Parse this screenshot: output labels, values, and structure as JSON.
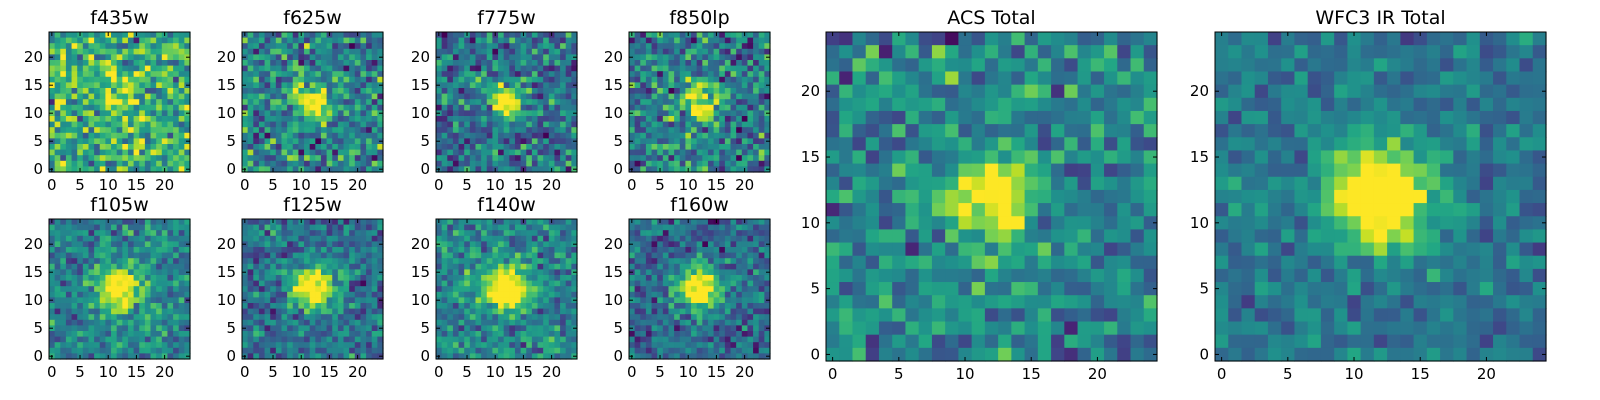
{
  "chart_data": [
    {
      "type": "heatmap",
      "title": "f435w",
      "peak": [
        12,
        12
      ],
      "signal": 0.15,
      "sigma": 3.0,
      "noise": 0.3,
      "base": 0.62,
      "seed": 11,
      "xlim": [
        0,
        24
      ],
      "ylim": [
        0,
        24
      ],
      "xticks": [
        0,
        5,
        10,
        15,
        20
      ],
      "yticks": [
        0,
        5,
        10,
        15,
        20
      ],
      "grid": false,
      "colormap": "viridis"
    },
    {
      "type": "heatmap",
      "title": "f625w",
      "peak": [
        12,
        12
      ],
      "signal": 0.45,
      "sigma": 2.2,
      "noise": 0.28,
      "base": 0.45,
      "seed": 23,
      "xlim": [
        0,
        24
      ],
      "ylim": [
        0,
        24
      ],
      "xticks": [
        0,
        5,
        10,
        15,
        20
      ],
      "yticks": [
        0,
        5,
        10,
        15,
        20
      ],
      "grid": false,
      "colormap": "viridis"
    },
    {
      "type": "heatmap",
      "title": "f775w",
      "peak": [
        12,
        12
      ],
      "signal": 0.55,
      "sigma": 2.0,
      "noise": 0.26,
      "base": 0.38,
      "seed": 37,
      "xlim": [
        0,
        24
      ],
      "ylim": [
        0,
        24
      ],
      "xticks": [
        0,
        5,
        10,
        15,
        20
      ],
      "yticks": [
        0,
        5,
        10,
        15,
        20
      ],
      "grid": false,
      "colormap": "viridis"
    },
    {
      "type": "heatmap",
      "title": "f850lp",
      "peak": [
        12,
        12
      ],
      "signal": 0.5,
      "sigma": 2.1,
      "noise": 0.28,
      "base": 0.42,
      "seed": 41,
      "xlim": [
        0,
        24
      ],
      "ylim": [
        0,
        24
      ],
      "xticks": [
        0,
        5,
        10,
        15,
        20
      ],
      "yticks": [
        0,
        5,
        10,
        15,
        20
      ],
      "grid": false,
      "colormap": "viridis"
    },
    {
      "type": "heatmap",
      "title": "f105w",
      "peak": [
        12,
        12
      ],
      "signal": 0.55,
      "sigma": 2.6,
      "noise": 0.2,
      "base": 0.45,
      "seed": 53,
      "xlim": [
        0,
        24
      ],
      "ylim": [
        0,
        24
      ],
      "xticks": [
        0,
        5,
        10,
        15,
        20
      ],
      "yticks": [
        0,
        5,
        10,
        15,
        20
      ],
      "grid": false,
      "colormap": "viridis"
    },
    {
      "type": "heatmap",
      "title": "f125w",
      "peak": [
        12,
        12
      ],
      "signal": 0.6,
      "sigma": 2.6,
      "noise": 0.2,
      "base": 0.38,
      "seed": 67,
      "xlim": [
        0,
        24
      ],
      "ylim": [
        0,
        24
      ],
      "xticks": [
        0,
        5,
        10,
        15,
        20
      ],
      "yticks": [
        0,
        5,
        10,
        15,
        20
      ],
      "grid": false,
      "colormap": "viridis"
    },
    {
      "type": "heatmap",
      "title": "f140w",
      "peak": [
        12,
        12
      ],
      "signal": 0.55,
      "sigma": 2.8,
      "noise": 0.2,
      "base": 0.45,
      "seed": 71,
      "xlim": [
        0,
        24
      ],
      "ylim": [
        0,
        24
      ],
      "xticks": [
        0,
        5,
        10,
        15,
        20
      ],
      "yticks": [
        0,
        5,
        10,
        15,
        20
      ],
      "grid": false,
      "colormap": "viridis"
    },
    {
      "type": "heatmap",
      "title": "f160w",
      "peak": [
        12,
        12
      ],
      "signal": 0.6,
      "sigma": 2.6,
      "noise": 0.2,
      "base": 0.35,
      "seed": 83,
      "xlim": [
        0,
        24
      ],
      "ylim": [
        0,
        24
      ],
      "xticks": [
        0,
        5,
        10,
        15,
        20
      ],
      "yticks": [
        0,
        5,
        10,
        15,
        20
      ],
      "grid": false,
      "colormap": "viridis"
    },
    {
      "type": "heatmap",
      "title": "ACS Total",
      "peak": [
        12,
        12
      ],
      "signal": 0.55,
      "sigma": 2.0,
      "noise": 0.22,
      "base": 0.45,
      "seed": 97,
      "xlim": [
        0,
        24
      ],
      "ylim": [
        0,
        24
      ],
      "xticks": [
        0,
        5,
        10,
        15,
        20
      ],
      "yticks": [
        0,
        5,
        10,
        15,
        20
      ],
      "grid": false,
      "colormap": "viridis"
    },
    {
      "type": "heatmap",
      "title": "WFC3 IR Total",
      "peak": [
        12,
        12
      ],
      "signal": 0.6,
      "sigma": 2.8,
      "noise": 0.14,
      "base": 0.4,
      "seed": 101,
      "xlim": [
        0,
        24
      ],
      "ylim": [
        0,
        24
      ],
      "xticks": [
        0,
        5,
        10,
        15,
        20
      ],
      "yticks": [
        0,
        5,
        10,
        15,
        20
      ],
      "grid": false,
      "colormap": "viridis"
    }
  ]
}
